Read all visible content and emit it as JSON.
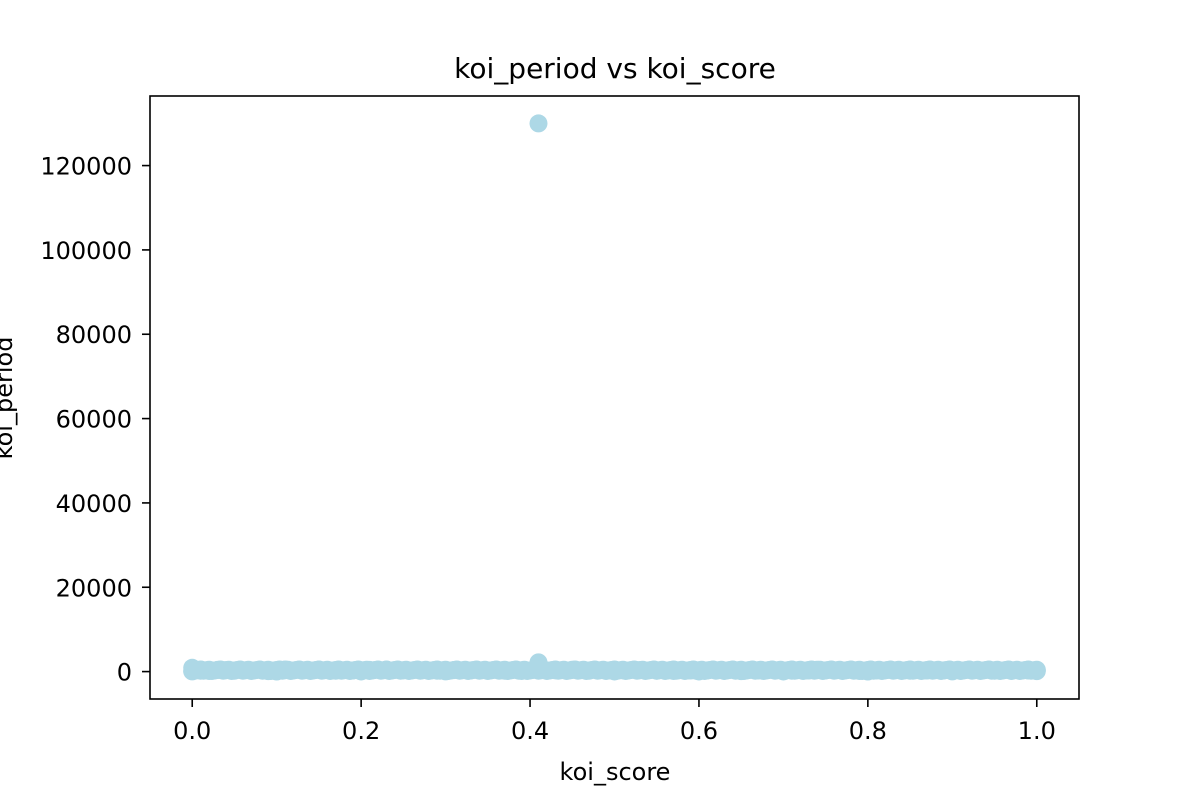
{
  "chart_data": {
    "type": "scatter",
    "title": "koi_period vs koi_score",
    "xlabel": "koi_score",
    "ylabel": "koi_period",
    "xlim": [
      -0.05,
      1.05
    ],
    "ylim": [
      -6500,
      136500
    ],
    "xticks": [
      0.0,
      0.2,
      0.4,
      0.6,
      0.8,
      1.0
    ],
    "xtick_labels": [
      "0.0",
      "0.2",
      "0.4",
      "0.6",
      "0.8",
      "1.0"
    ],
    "yticks": [
      0,
      20000,
      40000,
      60000,
      80000,
      100000,
      120000
    ],
    "ytick_labels": [
      "0",
      "20000",
      "40000",
      "60000",
      "80000",
      "100000",
      "120000"
    ],
    "grid": false,
    "legend": "none",
    "marker_color": "#add8e6",
    "notes": "Dense band of points spanning koi_score 0.0-1.0 at koi_period near 0-800; outliers at koi_score 0.41.",
    "series": [
      {
        "x": [
          0.0,
          0.002,
          0.005,
          0.01,
          0.02,
          0.03,
          0.04,
          0.05,
          0.07,
          0.09,
          0.11,
          0.13,
          0.15,
          0.17,
          0.19,
          0.21,
          0.23,
          0.25,
          0.27,
          0.29,
          0.31,
          0.33,
          0.35,
          0.37,
          0.39,
          0.41,
          0.41,
          0.41,
          0.43,
          0.45,
          0.47,
          0.49,
          0.51,
          0.53,
          0.55,
          0.57,
          0.59,
          0.61,
          0.63,
          0.65,
          0.67,
          0.69,
          0.71,
          0.73,
          0.74,
          0.75,
          0.77,
          0.79,
          0.81,
          0.83,
          0.85,
          0.87,
          0.89,
          0.91,
          0.93,
          0.95,
          0.97,
          0.99,
          1.0,
          1.0,
          0.0,
          0.1,
          0.2,
          0.3,
          0.5,
          0.6,
          0.7,
          0.8,
          0.9
        ],
        "y": [
          900,
          500,
          300,
          200,
          150,
          400,
          350,
          200,
          250,
          100,
          500,
          300,
          450,
          200,
          250,
          400,
          500,
          300,
          250,
          200,
          350,
          300,
          250,
          200,
          150,
          130000,
          2200,
          600,
          300,
          450,
          200,
          250,
          300,
          350,
          200,
          150,
          250,
          300,
          200,
          100,
          250,
          300,
          200,
          250,
          450,
          300,
          200,
          150,
          250,
          300,
          200,
          250,
          300,
          200,
          350,
          200,
          150,
          250,
          300,
          100,
          50,
          20,
          30,
          40,
          25,
          35,
          30,
          20,
          40
        ]
      }
    ]
  }
}
